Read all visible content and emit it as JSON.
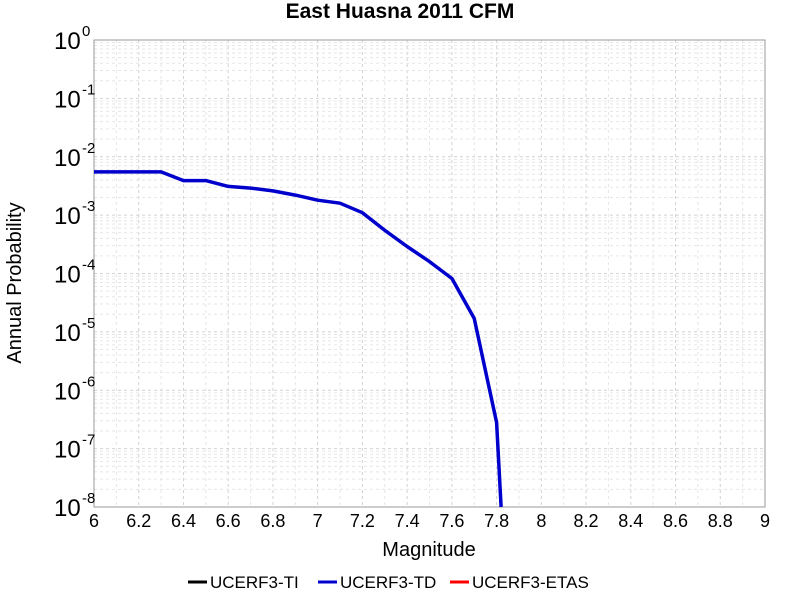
{
  "chart_data": {
    "type": "line",
    "title": "East Huasna 2011 CFM",
    "xlabel": "Magnitude",
    "ylabel": "Annual Probability",
    "xlim": [
      6,
      9
    ],
    "ylim": [
      1e-08,
      1
    ],
    "yscale": "log",
    "grid": true,
    "legend_position": "bottom",
    "x_ticks": [
      "6",
      "6.2",
      "6.4",
      "6.6",
      "6.8",
      "7",
      "7.2",
      "7.4",
      "7.6",
      "7.8",
      "8",
      "8.2",
      "8.4",
      "8.6",
      "8.8",
      "9"
    ],
    "y_ticks": [
      {
        "base": "10",
        "exp": "0"
      },
      {
        "base": "10",
        "exp": "-1"
      },
      {
        "base": "10",
        "exp": "-2"
      },
      {
        "base": "10",
        "exp": "-3"
      },
      {
        "base": "10",
        "exp": "-4"
      },
      {
        "base": "10",
        "exp": "-5"
      },
      {
        "base": "10",
        "exp": "-6"
      },
      {
        "base": "10",
        "exp": "-7"
      },
      {
        "base": "10",
        "exp": "-8"
      }
    ],
    "series": [
      {
        "name": "UCERF3-TI",
        "color": "#000000",
        "x": [],
        "y": []
      },
      {
        "name": "UCERF3-TD",
        "color": "#0000cc",
        "x": [
          6.0,
          6.1,
          6.2,
          6.3,
          6.4,
          6.5,
          6.6,
          6.7,
          6.8,
          6.9,
          7.0,
          7.1,
          7.2,
          7.3,
          7.4,
          7.5,
          7.6,
          7.7,
          7.8,
          7.82
        ],
        "y": [
          0.0055,
          0.0055,
          0.0055,
          0.0055,
          0.0039,
          0.0039,
          0.0031,
          0.0029,
          0.0026,
          0.0022,
          0.0018,
          0.0016,
          0.0011,
          0.00055,
          0.00029,
          0.00016,
          8.2e-05,
          1.7e-05,
          2.8e-07,
          1e-08
        ]
      },
      {
        "name": "UCERF3-ETAS",
        "color": "#ff0000",
        "x": [],
        "y": []
      }
    ]
  }
}
